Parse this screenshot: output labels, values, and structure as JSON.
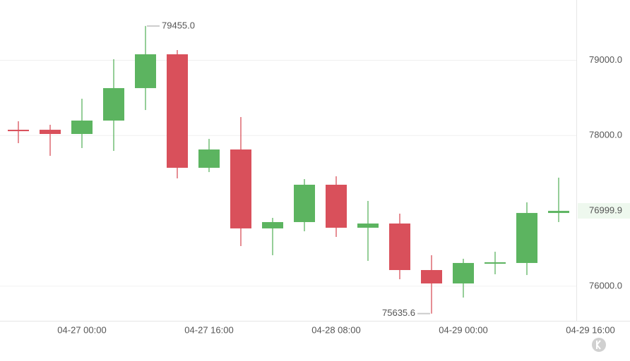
{
  "chart_data": {
    "type": "candlestick",
    "open": [
      78077,
      78077,
      78021,
      78199,
      78630,
      79079,
      77572,
      77815,
      76767,
      76851,
      77347,
      76776,
      76832,
      76214,
      76036,
      76298,
      76308,
      76972
    ],
    "high": [
      78190,
      78143,
      78489,
      79014,
      79455.0,
      79135,
      77956,
      78246,
      76907,
      77422,
      77459,
      77132,
      76963,
      76411,
      76364,
      76457,
      77113,
      77441
    ],
    "low": [
      77899,
      77731,
      77834,
      77796,
      78339,
      77431,
      77515,
      76532,
      76411,
      76729,
      76654,
      76336,
      76092,
      75635.6,
      75849,
      76158,
      76148,
      76851
    ],
    "close": [
      78058,
      78021,
      78199,
      78630,
      79079,
      77572,
      77815,
      76767,
      76851,
      77347,
      76776,
      76832,
      76214,
      76036,
      76308,
      76317,
      76972,
      76999.9
    ],
    "high_labels": [
      null,
      null,
      null,
      null,
      "79455.0",
      null,
      null,
      null,
      null,
      null,
      null,
      null,
      null,
      null,
      null,
      null,
      null,
      null
    ],
    "low_labels": [
      null,
      null,
      null,
      null,
      null,
      null,
      null,
      null,
      null,
      null,
      null,
      null,
      null,
      "75635.6",
      null,
      null,
      null,
      null
    ],
    "last_price_label": "76999.9",
    "up_color": "#5cb460",
    "down_color": "#d9505b",
    "ylim": [
      75540,
      79800
    ],
    "yticks": [
      {
        "value": 76000,
        "label": "76000.0"
      },
      {
        "value": 78000,
        "label": "78000.0"
      },
      {
        "value": 79000,
        "label": "79000.0"
      }
    ],
    "xticks": [
      {
        "value": 2,
        "label": "04-27 00:00"
      },
      {
        "value": 6,
        "label": "04-27 16:00"
      },
      {
        "value": 10,
        "label": "04-28 08:00"
      },
      {
        "value": 14,
        "label": "04-29 00:00"
      },
      {
        "value": 18,
        "label": "04-29 16:00"
      }
    ],
    "grid": true
  }
}
